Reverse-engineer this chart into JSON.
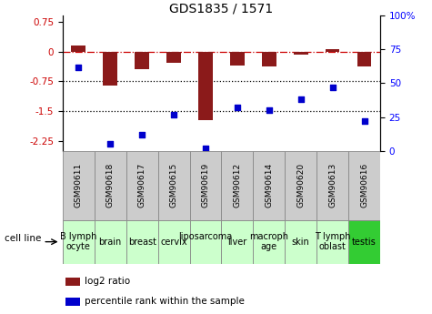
{
  "title": "GDS1835 / 1571",
  "gsm_labels": [
    "GSM90611",
    "GSM90618",
    "GSM90617",
    "GSM90615",
    "GSM90619",
    "GSM90612",
    "GSM90614",
    "GSM90620",
    "GSM90613",
    "GSM90616"
  ],
  "cell_lines": [
    "B lymph\nocyte",
    "brain",
    "breast",
    "cervix",
    "liposarcoma\n",
    "liver",
    "macroph\nage",
    "skin",
    "T lymph\noblast",
    "testis"
  ],
  "cell_line_colors": [
    "#ccffcc",
    "#ccffcc",
    "#ccffcc",
    "#ccffcc",
    "#ccffcc",
    "#ccffcc",
    "#ccffcc",
    "#ccffcc",
    "#ccffcc",
    "#33cc33"
  ],
  "gsm_bg": "#cccccc",
  "log2_ratio": [
    0.15,
    -0.87,
    -0.45,
    -0.28,
    -1.73,
    -0.35,
    -0.38,
    -0.08,
    0.05,
    -0.38
  ],
  "percentile_rank": [
    62,
    5,
    12,
    27,
    2,
    32,
    30,
    38,
    47,
    22
  ],
  "ylim_left": [
    -2.5,
    0.9
  ],
  "ylim_right": [
    0,
    100
  ],
  "yticks_left": [
    -2.25,
    -1.5,
    -0.75,
    0,
    0.75
  ],
  "yticks_right": [
    0,
    25,
    50,
    75,
    100
  ],
  "bar_color": "#8b1a1a",
  "dot_color": "#0000cc",
  "bg_color": "#ffffff",
  "legend_bar": "log2 ratio",
  "legend_dot": "percentile rank within the sample",
  "cell_line_label_fontsize": 7.0,
  "gsm_label_fontsize": 6.5
}
